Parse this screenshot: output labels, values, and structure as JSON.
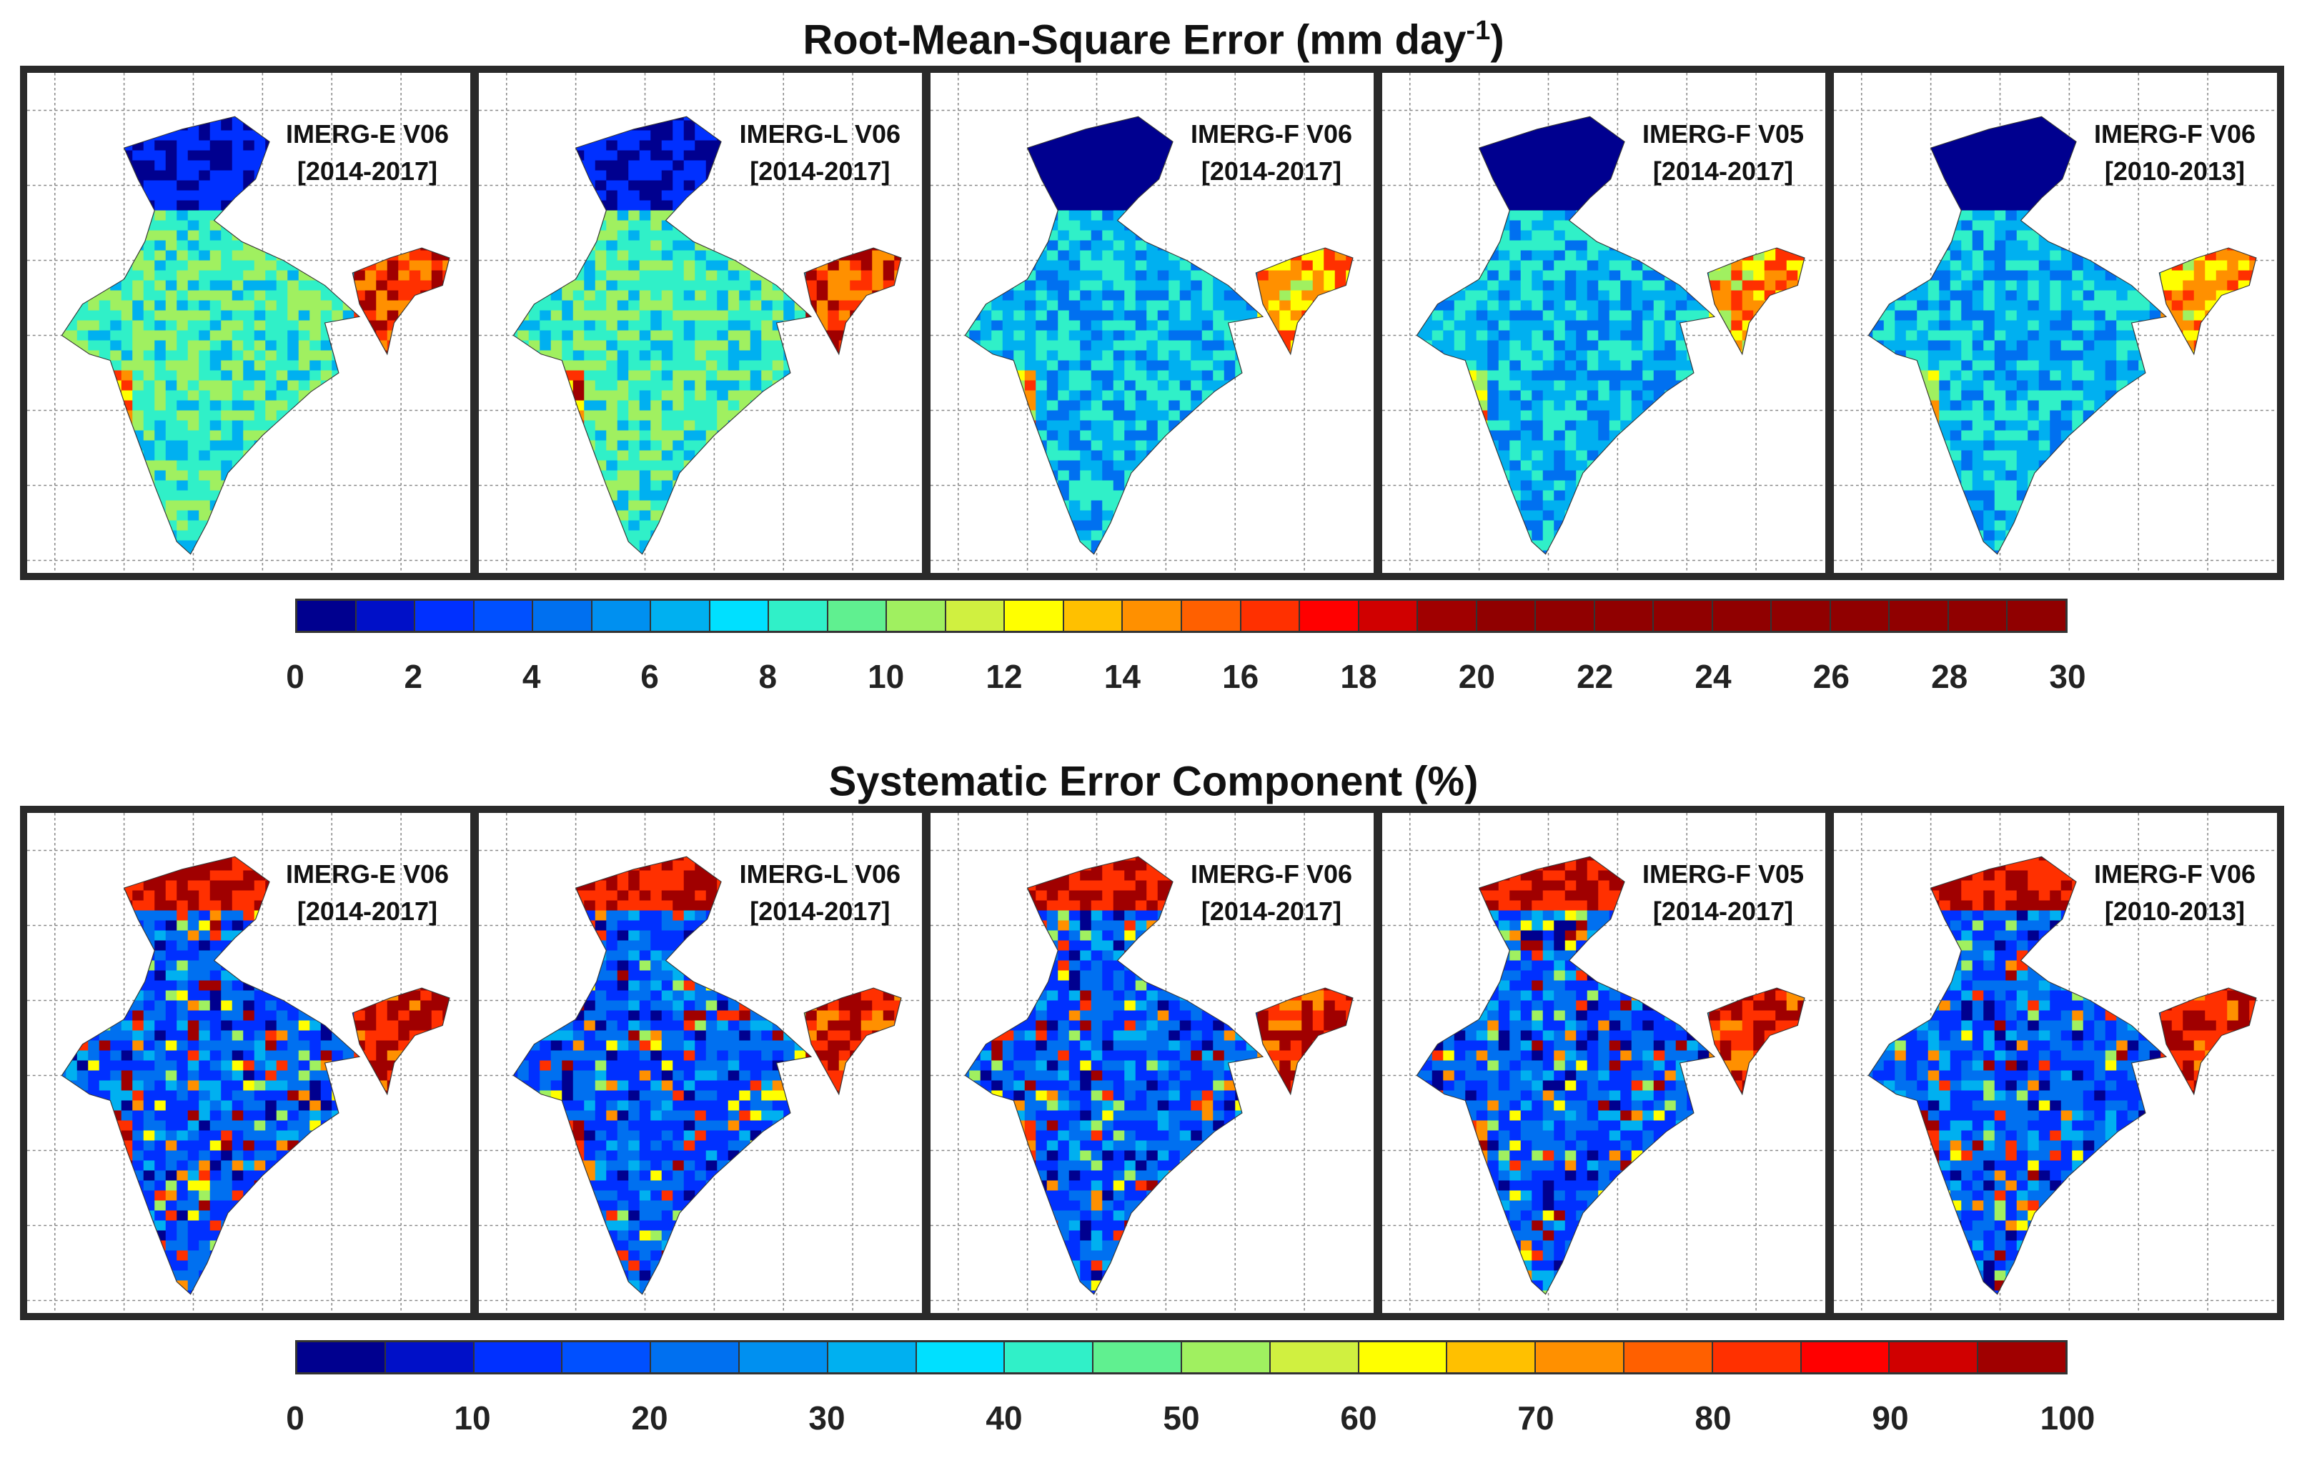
{
  "rows": [
    {
      "title": "Root-Mean-Square Error (mm day",
      "title_sup": "-1",
      "title_suffix": ")",
      "scale": {
        "min": 0,
        "max": 30
      },
      "colorbar_colors": [
        "#00008f",
        "#0010c8",
        "#0030ff",
        "#0050ff",
        "#0070f0",
        "#0090f0",
        "#00b0f0",
        "#00e0ff",
        "#30f0c8",
        "#60f090",
        "#a0f060",
        "#d0f040",
        "#ffff00",
        "#ffc000",
        "#ff9000",
        "#ff6000",
        "#ff3000",
        "#ff0000",
        "#d00000",
        "#a00000",
        "#900000",
        "#900000",
        "#900000",
        "#900000",
        "#900000",
        "#900000",
        "#900000",
        "#900000",
        "#900000",
        "#900000"
      ],
      "tick_labels": [
        "0",
        "2",
        "4",
        "6",
        "8",
        "10",
        "12",
        "14",
        "16",
        "18",
        "20",
        "22",
        "24",
        "26",
        "28",
        "30"
      ],
      "panels": [
        {
          "product": "IMERG-E V06",
          "period": "[2014-2017]"
        },
        {
          "product": "IMERG-L V06",
          "period": "[2014-2017]"
        },
        {
          "product": "IMERG-F V06",
          "period": "[2014-2017]"
        },
        {
          "product": "IMERG-F V05",
          "period": "[2014-2017]"
        },
        {
          "product": "IMERG-F V06",
          "period": "[2010-2013]"
        }
      ]
    },
    {
      "title": "Systematic Error Component (%)",
      "title_sup": "",
      "title_suffix": "",
      "scale": {
        "min": 0,
        "max": 100
      },
      "colorbar_colors": [
        "#00008f",
        "#0010c8",
        "#0030ff",
        "#0050ff",
        "#0070f0",
        "#0090f0",
        "#00b0f0",
        "#00e0ff",
        "#30f0c8",
        "#60f090",
        "#a0f060",
        "#d0f040",
        "#ffff00",
        "#ffc000",
        "#ff9000",
        "#ff6000",
        "#ff3000",
        "#ff0000",
        "#d00000",
        "#a00000"
      ],
      "tick_labels": [
        "0",
        "10",
        "20",
        "30",
        "40",
        "50",
        "60",
        "70",
        "80",
        "90",
        "100"
      ],
      "panels": [
        {
          "product": "IMERG-E V06",
          "period": "[2014-2017]"
        },
        {
          "product": "IMERG-L V06",
          "period": "[2014-2017]"
        },
        {
          "product": "IMERG-F V06",
          "period": "[2014-2017]"
        },
        {
          "product": "IMERG-F V05",
          "period": "[2014-2017]"
        },
        {
          "product": "IMERG-F V06",
          "period": "[2010-2013]"
        }
      ]
    }
  ]
}
